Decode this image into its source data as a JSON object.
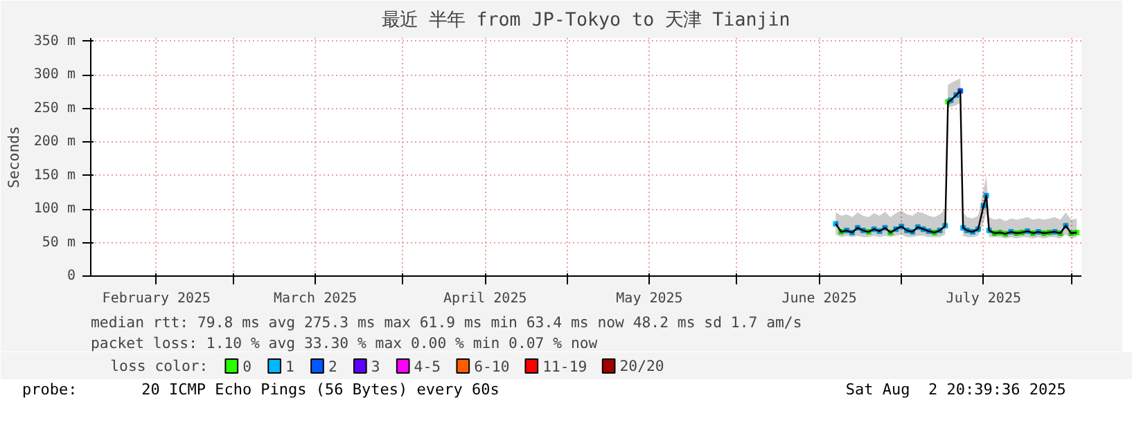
{
  "chart_data": {
    "type": "line",
    "title": "最近 半年 from JP-Tokyo to 天津 Tianjin",
    "ylabel": "Seconds",
    "legend_title": "loss color:",
    "legend": "bottom",
    "grid": true,
    "xlim": [
      "2025-02-03",
      "2025-08-02T20:39"
    ],
    "xticks": [
      {
        "value": "2025-02-15",
        "label": "February 2025"
      },
      {
        "value": "2025-03-01",
        "label": null
      },
      {
        "value": "2025-03-16",
        "label": "March 2025"
      },
      {
        "value": "2025-04-01",
        "label": null
      },
      {
        "value": "2025-04-16",
        "label": "April 2025"
      },
      {
        "value": "2025-05-01",
        "label": null
      },
      {
        "value": "2025-05-16",
        "label": "May 2025"
      },
      {
        "value": "2025-06-01",
        "label": null
      },
      {
        "value": "2025-06-16",
        "label": "June 2025"
      },
      {
        "value": "2025-07-01",
        "label": null
      },
      {
        "value": "2025-07-16",
        "label": "July 2025"
      },
      {
        "value": "2025-08-01",
        "label": null
      }
    ],
    "ylim": [
      0,
      355
    ],
    "yticks": [
      {
        "value": 0,
        "label": "0"
      },
      {
        "value": 50,
        "label": "50 m"
      },
      {
        "value": 100,
        "label": "100 m"
      },
      {
        "value": 150,
        "label": "150 m"
      },
      {
        "value": 200,
        "label": "200 m"
      },
      {
        "value": 250,
        "label": "250 m"
      },
      {
        "value": 300,
        "label": "300 m"
      },
      {
        "value": 350,
        "label": "350 m"
      }
    ],
    "x": [
      "2025-06-19",
      "2025-06-20",
      "2025-06-21",
      "2025-06-22",
      "2025-06-23",
      "2025-06-24",
      "2025-06-25",
      "2025-06-26",
      "2025-06-27",
      "2025-06-28",
      "2025-06-29",
      "2025-06-30",
      "2025-07-01",
      "2025-07-02",
      "2025-07-03",
      "2025-07-04",
      "2025-07-05",
      "2025-07-06",
      "2025-07-07",
      "2025-07-08",
      "2025-07-09",
      "2025-07-09T12:00",
      "2025-07-10",
      "2025-07-11",
      "2025-07-11T18:00",
      "2025-07-12T06:00",
      "2025-07-13",
      "2025-07-14",
      "2025-07-15",
      "2025-07-16",
      "2025-07-16T12:00",
      "2025-07-17",
      "2025-07-18",
      "2025-07-19",
      "2025-07-20",
      "2025-07-21",
      "2025-07-22",
      "2025-07-23",
      "2025-07-24",
      "2025-07-25",
      "2025-07-26",
      "2025-07-27",
      "2025-07-28",
      "2025-07-29",
      "2025-07-30",
      "2025-07-31",
      "2025-08-01",
      "2025-08-02"
    ],
    "series": [
      {
        "color": "#000000",
        "lower": [
          62,
          58,
          60,
          58,
          60,
          58,
          58,
          60,
          58,
          60,
          58,
          60,
          62,
          58,
          58,
          60,
          60,
          58,
          58,
          58,
          62,
          252,
          252,
          255,
          258,
          60,
          58,
          58,
          60,
          80,
          95,
          58,
          58,
          58,
          56,
          58,
          56,
          58,
          58,
          56,
          58,
          56,
          58,
          58,
          56,
          62,
          56,
          58
        ],
        "upper": [
          95,
          90,
          92,
          88,
          95,
          90,
          88,
          94,
          90,
          96,
          88,
          94,
          98,
          92,
          90,
          96,
          94,
          90,
          88,
          92,
          100,
          285,
          288,
          292,
          295,
          95,
          88,
          86,
          90,
          130,
          150,
          88,
          84,
          86,
          82,
          86,
          84,
          86,
          88,
          84,
          86,
          84,
          86,
          88,
          84,
          95,
          84,
          86
        ],
        "values": [
          78,
          66,
          68,
          65,
          72,
          68,
          66,
          70,
          67,
          72,
          65,
          70,
          74,
          68,
          66,
          73,
          70,
          67,
          65,
          68,
          75,
          260,
          262,
          270,
          276,
          72,
          68,
          66,
          70,
          105,
          120,
          68,
          64,
          65,
          63,
          66,
          64,
          65,
          67,
          64,
          66,
          64,
          65,
          66,
          64,
          75,
          64,
          65
        ]
      },
      {
        "type": "scatter",
        "name": "0",
        "color": "#26ff00",
        "values": [
          null,
          66,
          null,
          null,
          null,
          null,
          66,
          null,
          null,
          null,
          65,
          null,
          null,
          null,
          null,
          null,
          null,
          null,
          65,
          null,
          null,
          260,
          null,
          null,
          null,
          null,
          null,
          null,
          null,
          null,
          null,
          null,
          64,
          65,
          63,
          null,
          64,
          65,
          null,
          64,
          null,
          64,
          65,
          null,
          64,
          null,
          64,
          65
        ]
      },
      {
        "type": "scatter",
        "name": "1",
        "color": "#00b8ff",
        "values": [
          78,
          null,
          68,
          65,
          72,
          68,
          null,
          70,
          67,
          72,
          null,
          70,
          74,
          68,
          66,
          73,
          70,
          67,
          null,
          68,
          75,
          null,
          262,
          270,
          null,
          72,
          68,
          66,
          70,
          105,
          120,
          68,
          null,
          null,
          null,
          66,
          null,
          null,
          67,
          null,
          66,
          null,
          null,
          66,
          null,
          75,
          null,
          null
        ]
      },
      {
        "type": "scatter",
        "name": "2",
        "color": "#0059ff",
        "values": [
          null,
          null,
          null,
          null,
          null,
          null,
          null,
          null,
          null,
          null,
          null,
          null,
          null,
          null,
          null,
          null,
          null,
          null,
          null,
          null,
          null,
          null,
          null,
          null,
          276,
          null,
          null,
          null,
          null,
          null,
          null,
          null,
          null,
          null,
          null,
          null,
          null,
          null,
          null,
          null,
          null,
          null,
          null,
          null,
          null,
          null,
          null,
          null
        ]
      },
      {
        "type": "scatter",
        "name": "3",
        "color": "#5e00ff",
        "values": [
          null,
          null,
          null,
          null,
          null,
          null,
          null,
          null,
          null,
          null,
          null,
          null,
          null,
          null,
          null,
          null,
          null,
          null,
          null,
          null,
          null,
          null,
          null,
          null,
          null,
          null,
          null,
          null,
          null,
          null,
          null,
          null,
          null,
          null,
          null,
          null,
          null,
          null,
          null,
          null,
          null,
          null,
          null,
          null,
          null,
          null,
          null,
          null
        ]
      },
      {
        "type": "scatter",
        "name": "4-5",
        "color": "#ff00ff",
        "values": [
          null,
          null,
          null,
          null,
          null,
          null,
          null,
          null,
          null,
          null,
          null,
          null,
          null,
          null,
          null,
          null,
          null,
          null,
          null,
          null,
          null,
          null,
          null,
          null,
          null,
          null,
          null,
          null,
          null,
          null,
          null,
          null,
          null,
          null,
          null,
          null,
          null,
          null,
          null,
          null,
          null,
          null,
          null,
          null,
          null,
          null,
          null,
          null
        ]
      },
      {
        "type": "scatter",
        "name": "6-10",
        "color": "#ff5e00",
        "values": [
          null,
          null,
          null,
          null,
          null,
          null,
          null,
          null,
          null,
          null,
          null,
          null,
          null,
          null,
          null,
          null,
          null,
          null,
          null,
          null,
          null,
          null,
          null,
          null,
          null,
          null,
          null,
          null,
          null,
          null,
          null,
          null,
          null,
          null,
          null,
          null,
          null,
          null,
          null,
          null,
          null,
          null,
          null,
          null,
          null,
          null,
          null,
          null
        ]
      },
      {
        "type": "scatter",
        "name": "11-19",
        "color": "#ff0000",
        "values": [
          null,
          null,
          null,
          null,
          null,
          null,
          null,
          null,
          null,
          null,
          null,
          null,
          null,
          null,
          null,
          null,
          null,
          null,
          null,
          null,
          null,
          null,
          null,
          null,
          null,
          null,
          null,
          null,
          null,
          null,
          null,
          null,
          null,
          null,
          null,
          null,
          null,
          null,
          null,
          null,
          null,
          null,
          null,
          null,
          null,
          null,
          null,
          null
        ]
      },
      {
        "type": "scatter",
        "name": "20/20",
        "color": "#a10000",
        "values": [
          null,
          null,
          null,
          null,
          null,
          null,
          null,
          null,
          null,
          null,
          null,
          null,
          null,
          null,
          null,
          null,
          null,
          null,
          null,
          null,
          null,
          null,
          null,
          null,
          null,
          null,
          null,
          null,
          null,
          null,
          null,
          null,
          null,
          null,
          null,
          null,
          null,
          null,
          null,
          null,
          null,
          null,
          null,
          null,
          null,
          null,
          null,
          null
        ]
      }
    ],
    "annotations": [
      "median rtt:  79.8 ms avg  275.3 ms max  61.9 ms min  63.4 ms now  48.2 ms sd  1.7   am/s",
      "packet loss: 1.10 % avg  33.30 % max  0.00 % min  0.07 % now",
      "probe:       20 ICMP Echo Pings (56 Bytes) every 60s",
      "Sat Aug  2 20:39:36 2025"
    ]
  }
}
